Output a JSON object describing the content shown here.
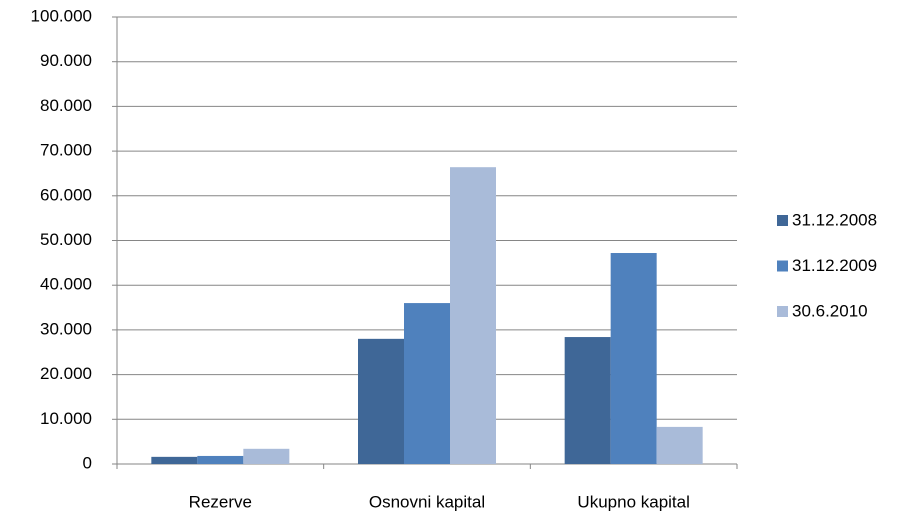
{
  "chart_data": {
    "type": "bar",
    "categories": [
      "Rezerve",
      "Osnovni kapital",
      "Ukupno kapital"
    ],
    "series": [
      {
        "name": "31.12.2008",
        "color": "#3f6797",
        "values": [
          1600,
          28000,
          28400
        ]
      },
      {
        "name": "31.12.2009",
        "color": "#4f81bd",
        "values": [
          1800,
          36000,
          47200
        ]
      },
      {
        "name": "30.6.2010",
        "color": "#a9bbd9",
        "values": [
          3400,
          66400,
          8300
        ]
      }
    ],
    "ylim": [
      0,
      100000
    ],
    "yticks": [
      0,
      {
        "value": 10000,
        "label": "10.000"
      },
      {
        "value": 20000,
        "label": "20.000"
      },
      {
        "value": 30000,
        "label": "30.000"
      },
      {
        "value": 40000,
        "label": "40.000"
      },
      {
        "value": 50000,
        "label": "50.000"
      },
      {
        "value": 60000,
        "label": "60.000"
      },
      {
        "value": 70000,
        "label": "70.000"
      },
      {
        "value": 80000,
        "label": "80.000"
      },
      {
        "value": 90000,
        "label": "90.000"
      },
      {
        "value": 100000,
        "label": "100.000"
      }
    ],
    "grid": true,
    "legend": "right"
  }
}
